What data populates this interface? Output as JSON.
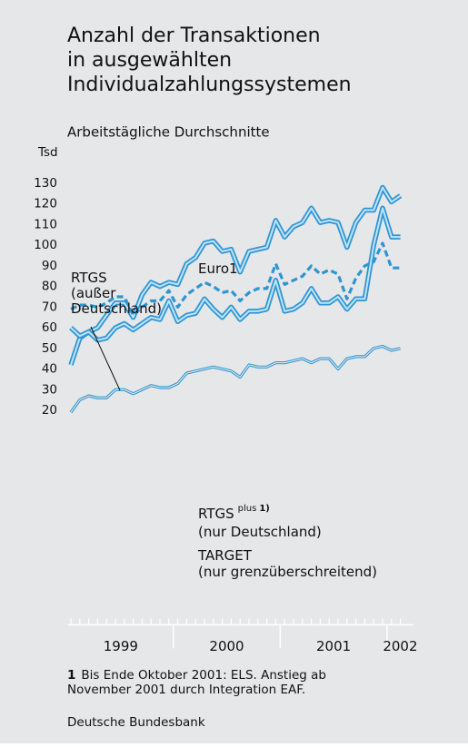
{
  "chart_data": {
    "type": "line",
    "title": [
      "Anzahl der Transaktionen",
      "in ausgewählten",
      "Individualzahlungssystemen"
    ],
    "subtitle": "Arbeitstägliche Durchschnitte",
    "y_unit": "Tsd",
    "categories": [
      null,
      null,
      null,
      null,
      null,
      null,
      null,
      null,
      null,
      null,
      null,
      null,
      null,
      null,
      null,
      null,
      null,
      null,
      null,
      null,
      null,
      null,
      null,
      null,
      null,
      null,
      null,
      null,
      null,
      null,
      null,
      null,
      null,
      null,
      null,
      null,
      null,
      null
    ],
    "year_labels": [
      "1999",
      "2000",
      "2001",
      "2002"
    ],
    "series": [
      {
        "color": "#2e95d3",
        "style": "thick",
        "values": [
          42,
          55,
          58,
          60,
          66,
          72,
          72,
          65,
          76,
          82,
          80,
          82,
          81,
          91,
          94,
          101,
          102,
          97,
          98,
          87,
          97,
          98,
          99,
          112,
          104,
          109,
          111,
          118,
          111,
          112,
          111,
          99,
          111,
          117,
          117,
          128,
          121,
          124
        ]
      },
      {
        "color": "#2e95d3",
        "style": "thick",
        "values": [
          60,
          56,
          58,
          54,
          55,
          60,
          62,
          59,
          62,
          65,
          64,
          73,
          63,
          66,
          67,
          74,
          69,
          65,
          70,
          64,
          68,
          68,
          69,
          83,
          68,
          69,
          72,
          79,
          72,
          72,
          75,
          69,
          74,
          74,
          100,
          118,
          104,
          104
        ]
      },
      {
        "color": "#2e95d3",
        "style": "dashed",
        "values": [
          69,
          71,
          71,
          70,
          72,
          75,
          75,
          66,
          70,
          73,
          73,
          78,
          70,
          76,
          79,
          82,
          80,
          77,
          78,
          73,
          77,
          79,
          79,
          91,
          81,
          83,
          85,
          90,
          86,
          88,
          86,
          74,
          84,
          90,
          92,
          101,
          89,
          89
        ]
      },
      {
        "color": "#2e95d3",
        "style": "thin",
        "values": [
          19,
          25,
          27,
          26,
          26,
          30,
          30,
          28,
          30,
          32,
          31,
          31,
          33,
          38,
          39,
          40,
          41,
          40,
          39,
          36,
          42,
          41,
          41,
          43,
          43,
          44,
          45,
          43,
          45,
          45,
          40,
          45,
          46,
          46,
          50,
          51,
          49,
          50
        ]
      }
    ],
    "annotations": [
      {
        "lines": [
          "Euro1"
        ]
      },
      {
        "lines": [
          "RTGS",
          "(außer",
          "Deutschland)"
        ]
      },
      {
        "lines": [
          "RTGS",
          "(nur Deutschland)"
        ],
        "sup": "plus",
        "sup_note": "1)"
      },
      {
        "lines": [
          "TARGET",
          "(nur grenzüberschreitend)"
        ]
      }
    ],
    "footnote": {
      "marker": "1",
      "text": [
        "Bis Ende Oktober 2001: ELS. Anstieg ab",
        "November 2001 durch Integration EAF."
      ]
    },
    "source": "Deutsche Bundesbank",
    "ylim": [
      -84,
      142
    ],
    "yticks": [
      20,
      30,
      40,
      50,
      60,
      70,
      80,
      90,
      100,
      110,
      120,
      130
    ],
    "grid": false,
    "background": "#e6e7e8"
  }
}
